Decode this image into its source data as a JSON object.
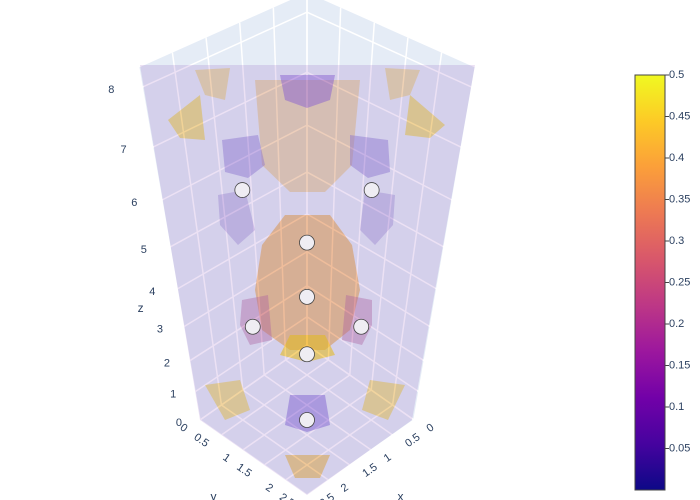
{
  "chart_data": {
    "type": "isosurface",
    "xaxis_title": "x",
    "yaxis_title": "y",
    "zaxis_title": "z",
    "xlim": [
      0,
      2.5
    ],
    "ylim": [
      0,
      2.5
    ],
    "zlim": [
      0,
      8.3
    ],
    "xticks": [
      0,
      0.5,
      1,
      1.5,
      2,
      2.5
    ],
    "yticks": [
      0,
      0.5,
      1,
      1.5,
      2,
      2.5
    ],
    "zticks": [
      0,
      1,
      2,
      3,
      4,
      5,
      6,
      7,
      8
    ],
    "grid": true,
    "points": {
      "color": "#efedf3",
      "x": [
        1.25,
        1.25,
        1.8,
        0.7,
        1.25,
        1.25,
        1.8,
        0.7
      ],
      "y": [
        1.25,
        1.25,
        0.7,
        1.8,
        1.25,
        1.25,
        0.7,
        1.8
      ],
      "z": [
        0,
        2.2,
        3,
        3,
        3.8,
        5.1,
        6.2,
        6.2
      ]
    },
    "colorbar": {
      "clim": [
        0,
        0.5
      ],
      "ticks": [
        0.05,
        0.1,
        0.15,
        0.2,
        0.25,
        0.3,
        0.35,
        0.4,
        0.45,
        0.5
      ],
      "colorscale": [
        "#0d0887",
        "#46039f",
        "#7201a8",
        "#9c179e",
        "#bd3786",
        "#d8576b",
        "#ed7953",
        "#fb9f3a",
        "#fdca26",
        "#f0f921"
      ]
    }
  }
}
